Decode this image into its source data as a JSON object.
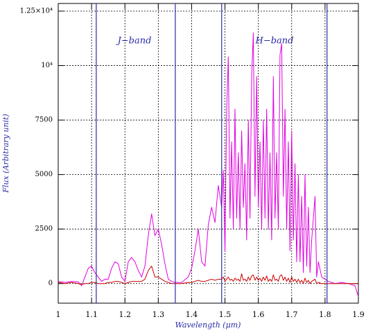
{
  "chart_data": {
    "type": "line",
    "xlabel": "Wavelength (μm)",
    "ylabel": "Flux (Arbitrary unit)",
    "annotations": [
      "J−band",
      "H−band"
    ],
    "xlim": [
      1.0,
      1.9
    ],
    "xticks": [
      1,
      1.1,
      1.2,
      1.3,
      1.4,
      1.5,
      1.6,
      1.7,
      1.8,
      1.9
    ],
    "ylim": [
      -900,
      12850
    ],
    "yticks": [
      0,
      2500,
      5000,
      7500,
      {
        "value": 10000,
        "label": "10⁴"
      },
      {
        "value": 12500,
        "label": "1.25×10⁴"
      }
    ],
    "grid": true,
    "vlines": [
      1.114,
      1.351,
      1.49,
      1.806
    ],
    "vline_color": "#2a2aa8",
    "x": [
      1.0,
      1.02,
      1.04,
      1.06,
      1.07,
      1.08,
      1.09,
      1.1,
      1.11,
      1.12,
      1.13,
      1.14,
      1.15,
      1.16,
      1.17,
      1.18,
      1.19,
      1.2,
      1.21,
      1.22,
      1.23,
      1.24,
      1.25,
      1.26,
      1.27,
      1.28,
      1.29,
      1.3,
      1.31,
      1.32,
      1.33,
      1.34,
      1.35,
      1.37,
      1.39,
      1.4,
      1.41,
      1.42,
      1.43,
      1.44,
      1.45,
      1.46,
      1.47,
      1.48,
      1.49,
      1.495,
      1.5,
      1.505,
      1.51,
      1.515,
      1.52,
      1.525,
      1.53,
      1.535,
      1.54,
      1.545,
      1.55,
      1.555,
      1.56,
      1.565,
      1.57,
      1.575,
      1.58,
      1.585,
      1.59,
      1.595,
      1.6,
      1.605,
      1.61,
      1.615,
      1.62,
      1.625,
      1.63,
      1.635,
      1.64,
      1.645,
      1.65,
      1.655,
      1.66,
      1.665,
      1.67,
      1.675,
      1.68,
      1.685,
      1.69,
      1.695,
      1.7,
      1.705,
      1.71,
      1.715,
      1.72,
      1.725,
      1.73,
      1.735,
      1.74,
      1.745,
      1.75,
      1.755,
      1.76,
      1.77,
      1.775,
      1.78,
      1.79,
      1.8,
      1.81,
      1.82,
      1.83,
      1.85,
      1.87,
      1.89,
      1.9
    ],
    "series": [
      {
        "color": "#e000e0",
        "values": [
          100,
          50,
          100,
          80,
          -100,
          300,
          700,
          800,
          500,
          300,
          100,
          200,
          200,
          700,
          1000,
          900,
          300,
          100,
          1000,
          1200,
          1000,
          600,
          300,
          800,
          2200,
          3200,
          2200,
          2500,
          1800,
          900,
          200,
          100,
          50,
          50,
          300,
          700,
          1500,
          2500,
          1000,
          800,
          2700,
          3500,
          2800,
          4500,
          3500,
          5200,
          1500,
          8000,
          10400,
          3000,
          6500,
          2500,
          8000,
          3000,
          6000,
          2500,
          7000,
          3500,
          5500,
          2000,
          7500,
          3000,
          9500,
          11500,
          4000,
          9500,
          3500,
          6500,
          2500,
          7500,
          3000,
          8000,
          2500,
          6000,
          2000,
          9500,
          3000,
          6000,
          2500,
          10500,
          11000,
          4000,
          8000,
          2500,
          6500,
          1500,
          7000,
          2000,
          5500,
          1000,
          5000,
          1000,
          4000,
          500,
          5000,
          800,
          3500,
          500,
          2000,
          4000,
          300,
          1000,
          300,
          200,
          100,
          50,
          0,
          50,
          0,
          -100,
          -600
        ]
      },
      {
        "color": "#cc0000",
        "values": [
          50,
          0,
          50,
          0,
          -50,
          0,
          0,
          50,
          50,
          0,
          0,
          0,
          50,
          50,
          100,
          100,
          50,
          0,
          50,
          100,
          100,
          100,
          100,
          200,
          600,
          800,
          300,
          300,
          200,
          100,
          50,
          0,
          0,
          0,
          50,
          50,
          100,
          150,
          100,
          100,
          150,
          200,
          150,
          200,
          200,
          300,
          100,
          200,
          300,
          150,
          200,
          100,
          250,
          150,
          200,
          100,
          450,
          150,
          200,
          100,
          300,
          150,
          350,
          400,
          150,
          300,
          150,
          250,
          100,
          300,
          150,
          350,
          100,
          200,
          100,
          400,
          150,
          200,
          100,
          350,
          400,
          150,
          300,
          100,
          250,
          50,
          300,
          100,
          200,
          50,
          200,
          50,
          150,
          0,
          250,
          50,
          150,
          0,
          100,
          200,
          0,
          50,
          0,
          0,
          0,
          0,
          0,
          0,
          0,
          0,
          0
        ]
      }
    ]
  }
}
